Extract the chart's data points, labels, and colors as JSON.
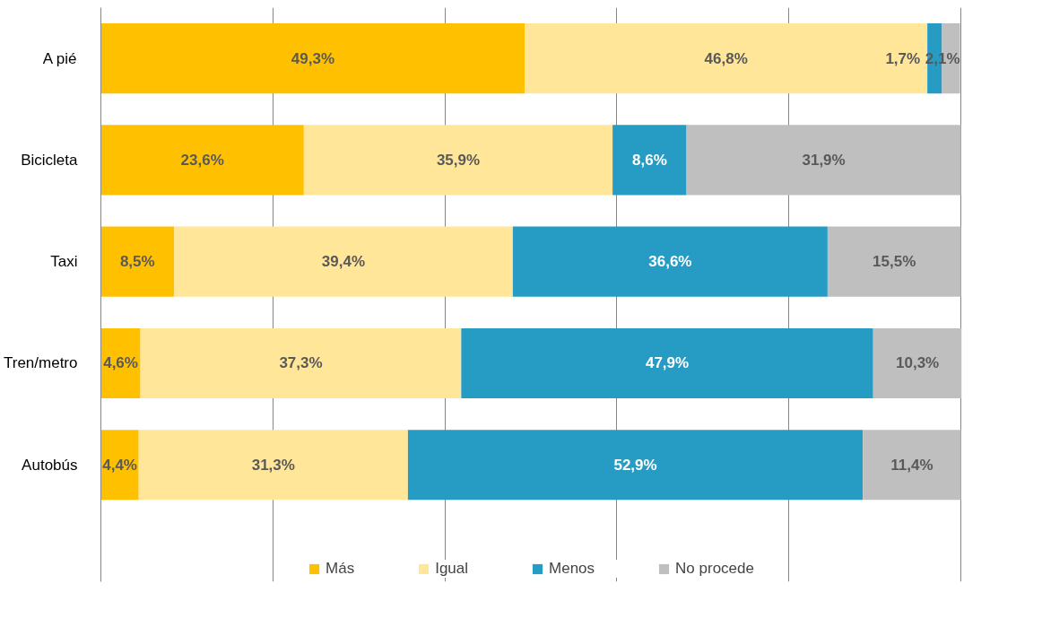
{
  "chart_data": {
    "type": "bar",
    "orientation": "horizontal",
    "stacked": true,
    "grid": "x",
    "legend": "bottom",
    "tick_labels": "y",
    "categories": [
      "A pié",
      "Bicicleta",
      "Taxi",
      "Tren/metro",
      "Autobús"
    ],
    "series": [
      {
        "name": "Más",
        "color": "#ffc000",
        "values": [
          49.3,
          23.6,
          8.5,
          4.6,
          4.4
        ],
        "value_labels": [
          "49,3%",
          "23,6%",
          "8,5%",
          "4,6%",
          "4,4%"
        ]
      },
      {
        "name": "Igual",
        "color": "#ffe699",
        "values": [
          46.8,
          35.9,
          39.4,
          37.3,
          31.3
        ],
        "value_labels": [
          "46,8%",
          "35,9%",
          "39,4%",
          "37,3%",
          "31,3%"
        ]
      },
      {
        "name": "Menos",
        "color": "#269cc4",
        "values": [
          1.7,
          8.6,
          36.6,
          47.9,
          52.9
        ],
        "value_labels": [
          "1,7%",
          "8,6%",
          "36,6%",
          "47,9%",
          "52,9%"
        ]
      },
      {
        "name": "No procede",
        "color": "#bfbfbf",
        "values": [
          2.1,
          31.9,
          15.5,
          10.3,
          11.4
        ],
        "value_labels": [
          "2,1%",
          "31,9%",
          "15,5%",
          "10,3%",
          "11,4%"
        ]
      }
    ]
  }
}
